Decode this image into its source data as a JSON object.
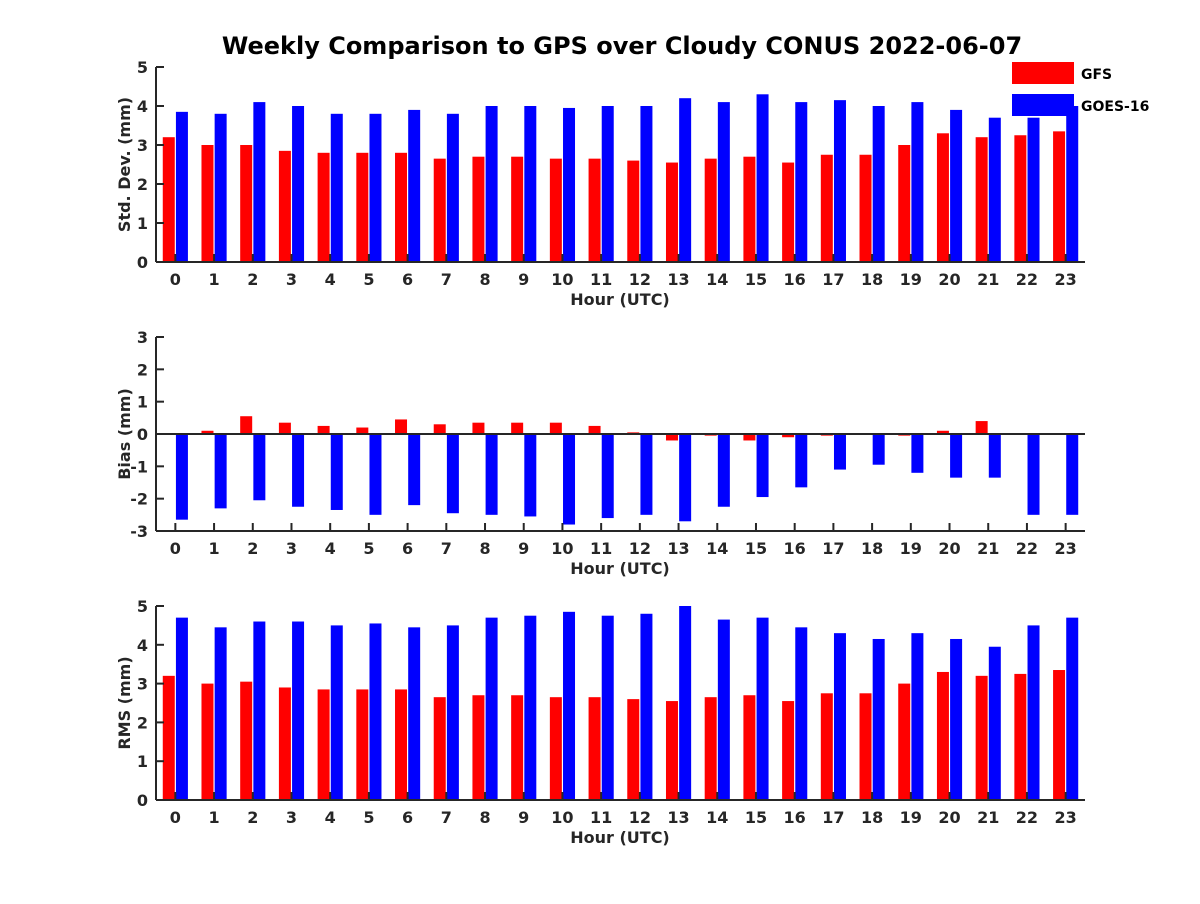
{
  "figure": {
    "title": "Weekly Comparison to GPS over Cloudy CONUS 2022-06-07"
  },
  "legend": {
    "placement": "top-right",
    "entries": [
      {
        "label": "GFS",
        "color": "#ff0000"
      },
      {
        "label": "GOES-16",
        "color": "#0000ff"
      }
    ]
  },
  "chart_data": [
    {
      "type": "bar",
      "title": "Weekly Comparison to GPS over Cloudy CONUS 2022-06-07",
      "xlabel": "Hour (UTC)",
      "ylabel": "Std. Dev. (mm)",
      "ylim": [
        0,
        5
      ],
      "yticks": [
        "0",
        "1",
        "2",
        "3",
        "4",
        "5"
      ],
      "categories": [
        "0",
        "1",
        "2",
        "3",
        "4",
        "5",
        "6",
        "7",
        "8",
        "9",
        "10",
        "11",
        "12",
        "13",
        "14",
        "15",
        "16",
        "17",
        "18",
        "19",
        "20",
        "21",
        "22",
        "23"
      ],
      "grid": false,
      "series": [
        {
          "name": "GFS",
          "color": "#ff0000",
          "values": [
            3.2,
            3.0,
            3.0,
            2.85,
            2.8,
            2.8,
            2.8,
            2.65,
            2.7,
            2.7,
            2.65,
            2.65,
            2.6,
            2.55,
            2.65,
            2.7,
            2.55,
            2.75,
            2.75,
            3.0,
            3.3,
            3.2,
            3.25,
            3.35
          ]
        },
        {
          "name": "GOES-16",
          "color": "#0000ff",
          "values": [
            3.85,
            3.8,
            4.1,
            4.0,
            3.8,
            3.8,
            3.9,
            3.8,
            4.0,
            4.0,
            3.95,
            4.0,
            4.0,
            4.2,
            4.1,
            4.3,
            4.1,
            4.15,
            4.0,
            4.1,
            3.9,
            3.7,
            3.7,
            4.0
          ]
        }
      ]
    },
    {
      "type": "bar",
      "xlabel": "Hour (UTC)",
      "ylabel": "Bias (mm)",
      "ylim": [
        -3,
        3
      ],
      "yticks": [
        "-3",
        "-2",
        "-1",
        "0",
        "1",
        "2",
        "3"
      ],
      "categories": [
        "0",
        "1",
        "2",
        "3",
        "4",
        "5",
        "6",
        "7",
        "8",
        "9",
        "10",
        "11",
        "12",
        "13",
        "14",
        "15",
        "16",
        "17",
        "18",
        "19",
        "20",
        "21",
        "22",
        "23"
      ],
      "grid": false,
      "zero_line": true,
      "series": [
        {
          "name": "GFS",
          "color": "#ff0000",
          "values": [
            0.0,
            0.1,
            0.55,
            0.35,
            0.25,
            0.2,
            0.45,
            0.3,
            0.35,
            0.35,
            0.35,
            0.25,
            0.05,
            -0.2,
            -0.05,
            -0.2,
            -0.1,
            -0.05,
            0.0,
            -0.05,
            0.1,
            0.4,
            0.0,
            0.0
          ]
        },
        {
          "name": "GOES-16",
          "color": "#0000ff",
          "values": [
            -2.65,
            -2.3,
            -2.05,
            -2.25,
            -2.35,
            -2.5,
            -2.2,
            -2.45,
            -2.5,
            -2.55,
            -2.8,
            -2.6,
            -2.5,
            -2.7,
            -2.25,
            -1.95,
            -1.65,
            -1.1,
            -0.95,
            -1.2,
            -1.35,
            -1.35,
            -2.5,
            -2.5
          ]
        }
      ]
    },
    {
      "type": "bar",
      "xlabel": "Hour (UTC)",
      "ylabel": "RMS (mm)",
      "ylim": [
        0,
        5
      ],
      "yticks": [
        "0",
        "1",
        "2",
        "3",
        "4",
        "5"
      ],
      "categories": [
        "0",
        "1",
        "2",
        "3",
        "4",
        "5",
        "6",
        "7",
        "8",
        "9",
        "10",
        "11",
        "12",
        "13",
        "14",
        "15",
        "16",
        "17",
        "18",
        "19",
        "20",
        "21",
        "22",
        "23"
      ],
      "grid": false,
      "series": [
        {
          "name": "GFS",
          "color": "#ff0000",
          "values": [
            3.2,
            3.0,
            3.05,
            2.9,
            2.85,
            2.85,
            2.85,
            2.65,
            2.7,
            2.7,
            2.65,
            2.65,
            2.6,
            2.55,
            2.65,
            2.7,
            2.55,
            2.75,
            2.75,
            3.0,
            3.3,
            3.2,
            3.25,
            3.35
          ]
        },
        {
          "name": "GOES-16",
          "color": "#0000ff",
          "values": [
            4.7,
            4.45,
            4.6,
            4.6,
            4.5,
            4.55,
            4.45,
            4.5,
            4.7,
            4.75,
            4.85,
            4.75,
            4.8,
            5.0,
            4.65,
            4.7,
            4.45,
            4.3,
            4.15,
            4.3,
            4.15,
            3.95,
            4.5,
            4.7
          ]
        }
      ]
    }
  ]
}
